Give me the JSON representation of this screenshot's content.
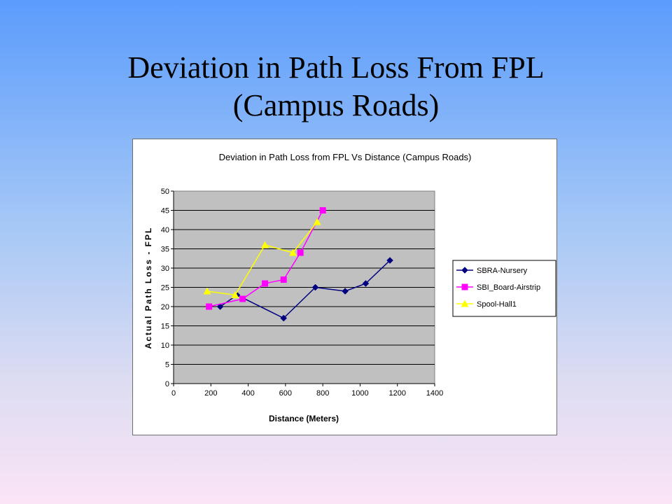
{
  "slide": {
    "title_line1": "Deviation in Path Loss From FPL",
    "title_line2": "(Campus Roads)"
  },
  "chart_data": {
    "type": "line",
    "title": "Deviation in Path Loss from FPL Vs Distance (Campus Roads)",
    "xlabel": "Distance (Meters)",
    "ylabel": "Actual Path Loss - FPL",
    "xlim": [
      0,
      1400
    ],
    "ylim": [
      0,
      50
    ],
    "xticks": [
      0,
      200,
      400,
      600,
      800,
      1000,
      1200,
      1400
    ],
    "yticks": [
      0,
      5,
      10,
      15,
      20,
      25,
      30,
      35,
      40,
      45,
      50
    ],
    "grid": true,
    "legend_position": "right",
    "plot_background": "#c0c0c0",
    "series": [
      {
        "name": "SBRA-Nursery",
        "color": "#000080",
        "marker": "diamond",
        "x": [
          250,
          340,
          590,
          760,
          920,
          1030,
          1160
        ],
        "y": [
          20,
          23,
          17,
          25,
          24,
          26,
          32
        ]
      },
      {
        "name": "SBI_Board-Airstrip",
        "color": "#ff00ff",
        "marker": "square",
        "x": [
          190,
          370,
          490,
          590,
          680,
          800
        ],
        "y": [
          20,
          22,
          26,
          27,
          34,
          45
        ]
      },
      {
        "name": "Spool-Hall1",
        "color": "#ffff00",
        "marker": "triangle",
        "x": [
          180,
          330,
          490,
          640,
          770
        ],
        "y": [
          24,
          23,
          36,
          34,
          42
        ]
      }
    ]
  }
}
